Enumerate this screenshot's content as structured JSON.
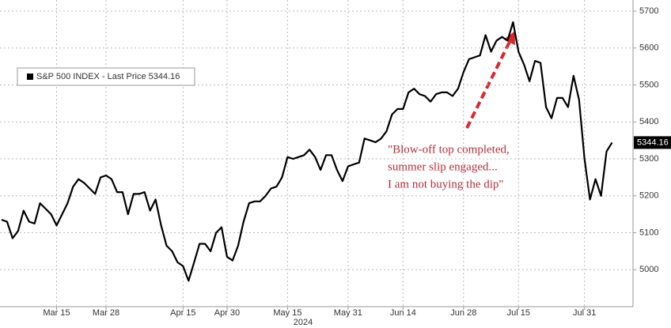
{
  "chart_data": {
    "type": "line",
    "x_label": "2024",
    "categories": [
      null,
      null,
      null,
      null,
      null,
      null,
      null,
      null,
      null,
      null,
      "Mar 15",
      null,
      null,
      null,
      null,
      null,
      null,
      null,
      null,
      "Mar 28",
      null,
      null,
      null,
      null,
      null,
      null,
      null,
      null,
      null,
      null,
      null,
      null,
      null,
      "Apr 15",
      null,
      null,
      null,
      null,
      null,
      null,
      null,
      "Apr 30",
      null,
      null,
      null,
      null,
      null,
      null,
      null,
      null,
      null,
      null,
      "May 15",
      null,
      null,
      null,
      null,
      null,
      null,
      null,
      null,
      null,
      null,
      "May 31",
      null,
      null,
      null,
      null,
      null,
      null,
      null,
      null,
      null,
      "Jun 14",
      null,
      null,
      null,
      null,
      null,
      null,
      null,
      null,
      null,
      null,
      "Jun 28",
      null,
      null,
      null,
      null,
      null,
      null,
      null,
      null,
      null,
      "Jul 15",
      null,
      null,
      null,
      null,
      null,
      null,
      null,
      null,
      null,
      null,
      null,
      "Jul 31",
      null,
      null,
      null,
      null,
      null
    ],
    "series": [
      {
        "name": "S&P 500 INDEX - Last Price 5344.16",
        "color": "#000000",
        "values": [
          5135,
          5130,
          5085,
          5105,
          5160,
          5130,
          5125,
          5180,
          5165,
          5150,
          5120,
          5150,
          5180,
          5225,
          5245,
          5235,
          5220,
          5205,
          5250,
          5255,
          5245,
          5210,
          5210,
          5150,
          5205,
          5205,
          5210,
          5160,
          5190,
          5120,
          5065,
          5050,
          5020,
          5010,
          4970,
          5020,
          5070,
          5070,
          5050,
          5100,
          5115,
          5035,
          5025,
          5065,
          5130,
          5180,
          5185,
          5185,
          5200,
          5220,
          5225,
          5250,
          5305,
          5300,
          5305,
          5310,
          5325,
          5305,
          5270,
          5310,
          5310,
          5270,
          5240,
          5280,
          5285,
          5290,
          5355,
          5350,
          5345,
          5355,
          5375,
          5420,
          5435,
          5435,
          5480,
          5490,
          5475,
          5470,
          5455,
          5475,
          5480,
          5480,
          5470,
          5490,
          5535,
          5570,
          5575,
          5580,
          5635,
          5590,
          5620,
          5630,
          5620,
          5670,
          5590,
          5555,
          5510,
          5565,
          5560,
          5440,
          5410,
          5465,
          5465,
          5440,
          5525,
          5460,
          5300,
          5190,
          5245,
          5200,
          5320,
          5344.16
        ],
        "value_labels": [
          null,
          null,
          null,
          null,
          null,
          null,
          null,
          null,
          null,
          null,
          null,
          null,
          null,
          null,
          null,
          null,
          null,
          null,
          null,
          null,
          null,
          null,
          null,
          null,
          null,
          null,
          null,
          null,
          null,
          null,
          null,
          null,
          null,
          null,
          null,
          null,
          null,
          null,
          null,
          null,
          null,
          null,
          null,
          null,
          null,
          null,
          null,
          null,
          null,
          null,
          null,
          null,
          null,
          null,
          null,
          null,
          null,
          null,
          null,
          null,
          null,
          null,
          null,
          null,
          null,
          null,
          null,
          null,
          null,
          null,
          null,
          null,
          null,
          null,
          null,
          null,
          null,
          null,
          null,
          null,
          null,
          null,
          null,
          null,
          null,
          null,
          null,
          null,
          null,
          null,
          null,
          null,
          null,
          null,
          null,
          null,
          null,
          null,
          null,
          null,
          null,
          null,
          null,
          null,
          null,
          null,
          null,
          null,
          null,
          null,
          null,
          "5344.16"
        ]
      }
    ],
    "ylim": [
      4900,
      5730
    ],
    "yticks": [
      5000,
      5100,
      5200,
      5300,
      5400,
      5500,
      5600,
      5700
    ],
    "grid": true,
    "legend": "upper-left",
    "annotation": {
      "lines": [
        "\"Blow-off top completed,",
        "summer slip engaged...",
        "I am not buying the dip\""
      ],
      "color": "#b3303c"
    }
  }
}
